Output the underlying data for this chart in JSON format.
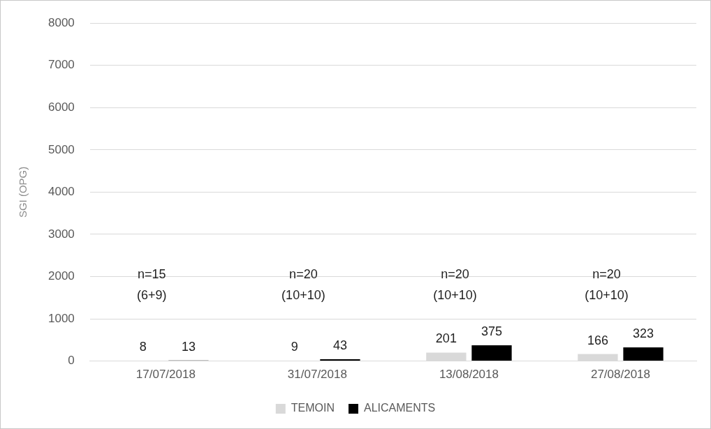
{
  "chart_data": {
    "type": "bar",
    "ylabel": "SGI (OPG)",
    "categories": [
      "17/07/2018",
      "31/07/2018",
      "13/08/2018",
      "27/08/2018"
    ],
    "series": [
      {
        "name": "TEMOIN",
        "color": "#d9d9d9",
        "values": [
          8,
          9,
          201,
          166
        ]
      },
      {
        "name": "ALICAMENTS",
        "color": "#000000",
        "values": [
          13,
          43,
          375,
          323
        ]
      }
    ],
    "ylim": [
      0,
      8000
    ],
    "yticks": [
      0,
      1000,
      2000,
      3000,
      4000,
      5000,
      6000,
      7000,
      8000
    ],
    "grid": "y",
    "legend": "bottom",
    "data_labels": true,
    "annotations": [
      "n=15\n(6+9)",
      "n=20\n(10+10)",
      "n=20\n(10+10)",
      "n=20\n(10+10)"
    ]
  }
}
